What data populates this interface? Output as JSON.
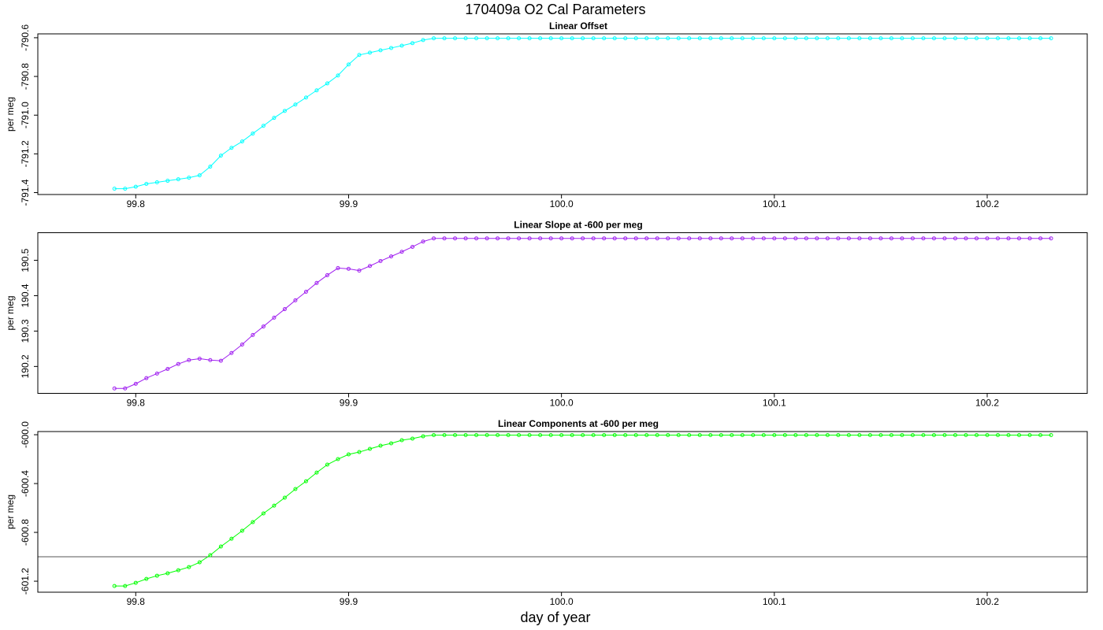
{
  "title": "170409a   O2 Cal Parameters",
  "xlabel": "day of year",
  "chart_data": [
    {
      "type": "line",
      "title": "Linear Offset",
      "ylabel": "per meg",
      "x": [
        99.79,
        99.795,
        99.8,
        99.805,
        99.81,
        99.815,
        99.82,
        99.825,
        99.83,
        99.835,
        99.84,
        99.845,
        99.85,
        99.855,
        99.86,
        99.865,
        99.87,
        99.875,
        99.88,
        99.885,
        99.89,
        99.895,
        99.9,
        99.905,
        99.91,
        99.915,
        99.92,
        99.925,
        99.93,
        99.935,
        99.94,
        99.945,
        99.95,
        99.955,
        99.96,
        99.965,
        99.97,
        99.975,
        99.98,
        99.985,
        99.99,
        99.995,
        100,
        100.005,
        100.01,
        100.015,
        100.02,
        100.025,
        100.03,
        100.035,
        100.04,
        100.045,
        100.05,
        100.055,
        100.06,
        100.065,
        100.07,
        100.075,
        100.08,
        100.085,
        100.09,
        100.095,
        100.1,
        100.105,
        100.11,
        100.115,
        100.12,
        100.125,
        100.13,
        100.135,
        100.14,
        100.145,
        100.15,
        100.155,
        100.16,
        100.165,
        100.17,
        100.175,
        100.18,
        100.185,
        100.19,
        100.195,
        100.2,
        100.205,
        100.21,
        100.215,
        100.22,
        100.225,
        100.23
      ],
      "series": [
        {
          "color": "#00ffff",
          "values": [
            -791.38,
            -791.38,
            -791.37,
            -791.355,
            -791.347,
            -791.339,
            -791.331,
            -791.323,
            -791.311,
            -791.266,
            -791.209,
            -791.169,
            -791.136,
            -791.095,
            -791.055,
            -791.014,
            -790.978,
            -790.945,
            -790.909,
            -790.872,
            -790.836,
            -790.795,
            -790.738,
            -790.689,
            -790.677,
            -790.665,
            -790.653,
            -790.641,
            -790.628,
            -790.612,
            -790.603,
            -790.603,
            -790.603,
            -790.603,
            -790.603,
            -790.603,
            -790.603,
            -790.603,
            -790.603,
            -790.603,
            -790.603,
            -790.603,
            -790.603,
            -790.603,
            -790.603,
            -790.603,
            -790.603,
            -790.603,
            -790.603,
            -790.603,
            -790.603,
            -790.603,
            -790.603,
            -790.603,
            -790.603,
            -790.603,
            -790.603,
            -790.603,
            -790.603,
            -790.603,
            -790.603,
            -790.603,
            -790.603,
            -790.603,
            -790.603,
            -790.603,
            -790.603,
            -790.603,
            -790.603,
            -790.603,
            -790.603,
            -790.603,
            -790.603,
            -790.603,
            -790.603,
            -790.603,
            -790.603,
            -790.603,
            -790.603,
            -790.603,
            -790.603,
            -790.603,
            -790.603,
            -790.603,
            -790.603,
            -790.603,
            -790.603,
            -790.603,
            -790.603
          ]
        }
      ],
      "xlim": [
        99.754,
        100.247
      ],
      "xticks": [
        99.8,
        99.9,
        {
          "value": 100,
          "label": "100.0"
        },
        100.1,
        100.2
      ],
      "ylim": [
        -791.41,
        -790.58
      ],
      "yticks": [
        {
          "value": -791.4,
          "label": "-791.4"
        },
        {
          "value": -791.2,
          "label": "-791.2"
        },
        {
          "value": -791,
          "label": "-791.0"
        },
        {
          "value": -790.8,
          "label": "-790.8"
        },
        -790.6
      ]
    },
    {
      "type": "line",
      "title": "Linear Slope at -600 per meg",
      "ylabel": "per meg",
      "x": [
        99.79,
        99.795,
        99.8,
        99.805,
        99.81,
        99.815,
        99.82,
        99.825,
        99.83,
        99.835,
        99.84,
        99.845,
        99.85,
        99.855,
        99.86,
        99.865,
        99.87,
        99.875,
        99.88,
        99.885,
        99.89,
        99.895,
        99.9,
        99.905,
        99.91,
        99.915,
        99.92,
        99.925,
        99.93,
        99.935,
        99.94,
        99.945,
        99.95,
        99.955,
        99.96,
        99.965,
        99.97,
        99.975,
        99.98,
        99.985,
        99.99,
        99.995,
        100,
        100.005,
        100.01,
        100.015,
        100.02,
        100.025,
        100.03,
        100.035,
        100.04,
        100.045,
        100.05,
        100.055,
        100.06,
        100.065,
        100.07,
        100.075,
        100.08,
        100.085,
        100.09,
        100.095,
        100.1,
        100.105,
        100.11,
        100.115,
        100.12,
        100.125,
        100.13,
        100.135,
        100.14,
        100.145,
        100.15,
        100.155,
        100.16,
        100.165,
        100.17,
        100.175,
        100.18,
        100.185,
        100.19,
        100.195,
        100.2,
        100.205,
        100.21,
        100.215,
        100.22,
        100.225,
        100.23
      ],
      "series": [
        {
          "color": "#a020f0",
          "values": [
            190.138,
            190.138,
            190.151,
            190.167,
            190.18,
            190.193,
            190.207,
            190.218,
            190.222,
            190.218,
            190.216,
            190.238,
            190.262,
            190.289,
            190.313,
            190.338,
            190.362,
            190.387,
            190.411,
            190.436,
            190.458,
            190.478,
            190.476,
            190.471,
            190.484,
            190.498,
            190.511,
            190.524,
            190.538,
            190.553,
            190.562,
            190.562,
            190.562,
            190.562,
            190.562,
            190.562,
            190.562,
            190.562,
            190.562,
            190.562,
            190.562,
            190.562,
            190.562,
            190.562,
            190.562,
            190.562,
            190.562,
            190.562,
            190.562,
            190.562,
            190.562,
            190.562,
            190.562,
            190.562,
            190.562,
            190.562,
            190.562,
            190.562,
            190.562,
            190.562,
            190.562,
            190.562,
            190.562,
            190.562,
            190.562,
            190.562,
            190.562,
            190.562,
            190.562,
            190.562,
            190.562,
            190.562,
            190.562,
            190.562,
            190.562,
            190.562,
            190.562,
            190.562,
            190.562,
            190.562,
            190.562,
            190.562,
            190.562,
            190.562,
            190.562,
            190.562,
            190.562,
            190.562,
            190.562
          ]
        }
      ],
      "xlim": [
        99.754,
        100.247
      ],
      "xticks": [
        99.8,
        99.9,
        {
          "value": 100,
          "label": "100.0"
        },
        100.1,
        100.2
      ],
      "ylim": [
        190.124,
        190.578
      ],
      "yticks": [
        190.2,
        190.3,
        190.4,
        190.5
      ]
    },
    {
      "type": "line",
      "title": "Linear Components at -600 per meg",
      "ylabel": "per meg",
      "x": [
        99.79,
        99.795,
        99.8,
        99.805,
        99.81,
        99.815,
        99.82,
        99.825,
        99.83,
        99.835,
        99.84,
        99.845,
        99.85,
        99.855,
        99.86,
        99.865,
        99.87,
        99.875,
        99.88,
        99.885,
        99.89,
        99.895,
        99.9,
        99.905,
        99.91,
        99.915,
        99.92,
        99.925,
        99.93,
        99.935,
        99.94,
        99.945,
        99.95,
        99.955,
        99.96,
        99.965,
        99.97,
        99.975,
        99.98,
        99.985,
        99.99,
        99.995,
        100,
        100.005,
        100.01,
        100.015,
        100.02,
        100.025,
        100.03,
        100.035,
        100.04,
        100.045,
        100.05,
        100.055,
        100.06,
        100.065,
        100.07,
        100.075,
        100.08,
        100.085,
        100.09,
        100.095,
        100.1,
        100.105,
        100.11,
        100.115,
        100.12,
        100.125,
        100.13,
        100.135,
        100.14,
        100.145,
        100.15,
        100.155,
        100.16,
        100.165,
        100.17,
        100.175,
        100.18,
        100.185,
        100.19,
        100.195,
        100.2,
        100.205,
        100.21,
        100.215,
        100.22,
        100.225,
        100.23
      ],
      "series": [
        {
          "color": "#00ff00",
          "values": [
            -601.239,
            -601.239,
            -601.213,
            -601.181,
            -601.155,
            -601.135,
            -601.11,
            -601.084,
            -601.045,
            -600.987,
            -600.916,
            -600.852,
            -600.787,
            -600.716,
            -600.645,
            -600.581,
            -600.516,
            -600.445,
            -600.381,
            -600.31,
            -600.245,
            -600.2,
            -600.161,
            -600.142,
            -600.116,
            -600.09,
            -600.071,
            -600.045,
            -600.032,
            -600.013,
            -600.003,
            -600.003,
            -600.003,
            -600.003,
            -600.003,
            -600.003,
            -600.003,
            -600.003,
            -600.003,
            -600.003,
            -600.003,
            -600.003,
            -600.003,
            -600.003,
            -600.003,
            -600.003,
            -600.003,
            -600.003,
            -600.003,
            -600.003,
            -600.003,
            -600.003,
            -600.003,
            -600.003,
            -600.003,
            -600.003,
            -600.003,
            -600.003,
            -600.003,
            -600.003,
            -600.003,
            -600.003,
            -600.003,
            -600.003,
            -600.003,
            -600.003,
            -600.003,
            -600.003,
            -600.003,
            -600.003,
            -600.003,
            -600.003,
            -600.003,
            -600.003,
            -600.003,
            -600.003,
            -600.003,
            -600.003,
            -600.003,
            -600.003,
            -600.003,
            -600.003,
            -600.003,
            -600.003,
            -600.003,
            -600.003,
            -600.003,
            -600.003,
            -600.003
          ]
        }
      ],
      "xlim": [
        99.754,
        100.247
      ],
      "xticks": [
        99.8,
        99.9,
        {
          "value": 100,
          "label": "100.0"
        },
        100.1,
        100.2
      ],
      "ylim": [
        -601.29,
        -599.974
      ],
      "yticks": [
        {
          "value": -601.2,
          "label": "-601.2"
        },
        {
          "value": -600.8,
          "label": "-600.8"
        },
        {
          "value": -600.4,
          "label": "-600.4"
        },
        {
          "value": -600,
          "label": "-600.0"
        }
      ],
      "hline": -601
    }
  ]
}
